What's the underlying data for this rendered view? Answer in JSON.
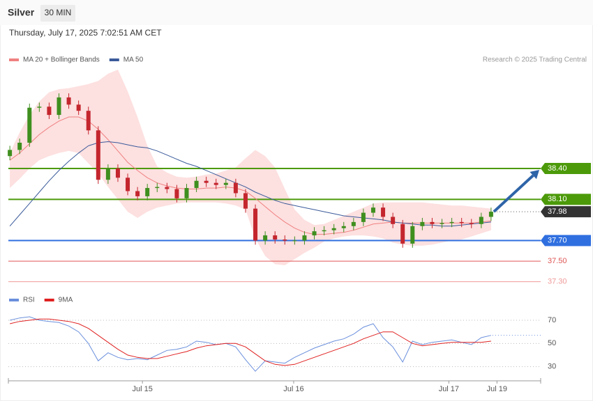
{
  "header": {
    "title": "Silver",
    "timeframe": "30 MIN",
    "timestamp": "Thursday, July 17, 2025 7:02:51 AM CET"
  },
  "chart_data": [
    {
      "type": "candlestick",
      "copyright": "Research © 2025 Trading Central",
      "up_color": "#3f8f1f",
      "down_color": "#c4262e",
      "xlim": [
        -0.15,
        54.05
      ],
      "ylim": [
        37.23,
        39.36
      ],
      "open": [
        38.52,
        38.58,
        38.65,
        38.99,
        39.0,
        38.92,
        39.09,
        39.02,
        38.96,
        38.77,
        38.29,
        38.4,
        38.31,
        38.18,
        38.13,
        38.21,
        38.22,
        38.2,
        38.11,
        38.21,
        38.28,
        38.26,
        38.24,
        38.26,
        38.16,
        38.01,
        37.7,
        37.75,
        37.71,
        37.7,
        37.7,
        37.75,
        37.79,
        37.8,
        37.82,
        37.84,
        37.88,
        37.97,
        38.02,
        37.93,
        37.86,
        37.67,
        37.84,
        37.88,
        37.86,
        37.87,
        37.88,
        37.87,
        37.86,
        37.93
      ],
      "high": [
        38.62,
        38.69,
        39.03,
        39.04,
        39.04,
        39.13,
        39.13,
        39.06,
        39.0,
        38.81,
        38.44,
        38.44,
        38.35,
        38.22,
        38.25,
        38.26,
        38.26,
        38.24,
        38.25,
        38.32,
        38.32,
        38.3,
        38.3,
        38.3,
        38.2,
        38.05,
        37.79,
        37.79,
        37.75,
        37.74,
        37.79,
        37.83,
        37.84,
        37.86,
        37.88,
        37.92,
        38.01,
        38.06,
        38.06,
        37.97,
        37.9,
        37.88,
        37.92,
        37.92,
        37.91,
        37.92,
        37.92,
        37.91,
        37.97,
        38.02
      ],
      "low": [
        38.48,
        38.54,
        38.61,
        38.95,
        38.88,
        38.88,
        38.98,
        38.92,
        38.73,
        38.25,
        38.25,
        38.27,
        38.14,
        38.09,
        38.09,
        38.17,
        38.16,
        38.07,
        38.07,
        38.17,
        38.22,
        38.2,
        38.2,
        38.12,
        37.97,
        37.66,
        37.66,
        37.67,
        37.66,
        37.66,
        37.66,
        37.71,
        37.75,
        37.76,
        37.78,
        37.8,
        37.84,
        37.93,
        37.89,
        37.82,
        37.63,
        37.63,
        37.8,
        37.82,
        37.82,
        37.83,
        37.83,
        37.82,
        37.82,
        37.89
      ],
      "close": [
        38.58,
        38.65,
        38.99,
        39.0,
        38.92,
        39.09,
        39.02,
        38.96,
        38.77,
        38.29,
        38.4,
        38.31,
        38.18,
        38.13,
        38.21,
        38.22,
        38.2,
        38.11,
        38.21,
        38.28,
        38.26,
        38.24,
        38.26,
        38.16,
        38.01,
        37.7,
        37.75,
        37.71,
        37.7,
        37.7,
        37.75,
        37.79,
        37.8,
        37.82,
        37.84,
        37.88,
        37.97,
        38.02,
        37.93,
        37.86,
        37.67,
        37.84,
        37.88,
        37.86,
        37.87,
        37.88,
        37.87,
        37.86,
        37.93,
        37.98
      ],
      "overlays": [
        {
          "name": "MA 20 + Bollinger Bands",
          "color": "#f08080",
          "band_color": "#fde0e0",
          "values": [
            38.48,
            38.55,
            38.64,
            38.73,
            38.8,
            38.86,
            38.9,
            38.9,
            38.86,
            38.78,
            38.68,
            38.57,
            38.46,
            38.38,
            38.31,
            38.26,
            38.23,
            38.21,
            38.2,
            38.2,
            38.21,
            38.21,
            38.22,
            38.21,
            38.18,
            38.11,
            38.03,
            37.95,
            37.88,
            37.82,
            37.78,
            37.76,
            37.76,
            37.77,
            37.78,
            37.8,
            37.83,
            37.86,
            37.87,
            37.88,
            37.87,
            37.87,
            37.87,
            37.87,
            37.87,
            37.87,
            37.87,
            37.87,
            37.88,
            37.89
          ],
          "upper": [
            38.55,
            38.75,
            38.92,
            39.05,
            39.14,
            39.17,
            39.18,
            39.2,
            39.22,
            39.25,
            39.32,
            39.36,
            39.15,
            38.9,
            38.62,
            38.42,
            38.36,
            38.32,
            38.31,
            38.32,
            38.34,
            38.35,
            38.38,
            38.41,
            38.5,
            38.58,
            38.52,
            38.41,
            38.2,
            38.0,
            37.9,
            37.85,
            37.86,
            37.9,
            37.94,
            37.98,
            38.02,
            38.06,
            38.07,
            38.07,
            38.07,
            38.07,
            38.07,
            38.06,
            38.05,
            38.04,
            38.04,
            38.03,
            38.02,
            38.01
          ],
          "lower": [
            38.21,
            38.3,
            38.4,
            38.48,
            38.52,
            38.55,
            38.57,
            38.55,
            38.45,
            38.35,
            38.22,
            38.1,
            37.98,
            37.92,
            37.98,
            38.02,
            38.04,
            38.06,
            38.07,
            38.07,
            38.07,
            38.07,
            38.06,
            38.04,
            38.0,
            37.72,
            37.55,
            37.47,
            37.46,
            37.52,
            37.58,
            37.63,
            37.69,
            37.72,
            37.74,
            37.75,
            37.75,
            37.74,
            37.72,
            37.68,
            37.66,
            37.65,
            37.65,
            37.66,
            37.68,
            37.7,
            37.71,
            37.74,
            37.77,
            37.8
          ]
        },
        {
          "name": "MA 50",
          "color": "#3a5a9a",
          "values": [
            37.84,
            37.95,
            38.06,
            38.17,
            38.28,
            38.38,
            38.47,
            38.55,
            38.62,
            38.65,
            38.66,
            38.65,
            38.63,
            38.61,
            38.6,
            38.57,
            38.53,
            38.49,
            38.45,
            38.42,
            38.38,
            38.34,
            38.3,
            38.26,
            38.22,
            38.17,
            38.13,
            38.09,
            38.06,
            38.04,
            38.02,
            38.0,
            37.98,
            37.96,
            37.94,
            37.93,
            37.92,
            37.91,
            37.9,
            37.88,
            37.87,
            37.86,
            37.85,
            37.85,
            37.84,
            37.84,
            37.85,
            37.86,
            37.87,
            37.88
          ]
        }
      ],
      "levels": [
        {
          "value": 38.4,
          "label": "38.40",
          "color": "#4c9a0a",
          "style": "tag"
        },
        {
          "value": 38.1,
          "label": "38.10",
          "color": "#4c9a0a",
          "style": "tag"
        },
        {
          "value": 37.98,
          "label": "37.98",
          "color": "#333333",
          "style": "current"
        },
        {
          "value": 37.7,
          "label": "37.70",
          "color": "#2f6fe0",
          "style": "tag"
        },
        {
          "value": 37.5,
          "label": "37.50",
          "color": "#e05555",
          "style": "text"
        },
        {
          "value": 37.3,
          "label": "37.30",
          "color": "#f09a9a",
          "style": "text"
        }
      ]
    },
    {
      "type": "line",
      "xlim": [
        -0.15,
        54.05
      ],
      "ylim": [
        19,
        91
      ],
      "yticks": [
        70,
        50,
        30
      ],
      "xticks": [
        {
          "value": 13.5,
          "label": "Jul 15"
        },
        {
          "value": 28.9,
          "label": "Jul 16"
        },
        {
          "value": 44.7,
          "label": "Jul 17"
        },
        {
          "value": 49.6,
          "label": "Jul 19"
        }
      ],
      "series": [
        {
          "name": "RSI",
          "color": "#6a8fdc",
          "values": [
            70,
            72,
            73,
            70,
            69,
            68,
            65,
            60,
            50,
            35,
            42,
            38,
            36,
            37,
            36,
            40,
            44,
            45,
            47,
            52,
            51,
            49,
            50,
            47,
            36,
            26,
            35,
            34,
            33,
            38,
            42,
            46,
            49,
            52,
            54,
            58,
            64,
            67,
            55,
            47,
            34,
            52,
            49,
            51,
            52,
            53,
            51,
            49,
            55,
            57
          ]
        },
        {
          "name": "9MA",
          "color": "#e02020",
          "values": [
            67,
            69,
            70,
            71,
            71,
            70,
            69,
            67,
            63,
            57,
            51,
            45,
            40,
            38,
            37,
            37,
            39,
            41,
            43,
            46,
            48,
            49,
            50,
            50,
            47,
            41,
            35,
            32,
            31,
            32,
            35,
            38,
            41,
            44,
            47,
            50,
            54,
            57,
            60,
            60,
            55,
            50,
            48,
            49,
            50,
            51,
            51,
            51,
            51,
            52
          ]
        }
      ]
    }
  ]
}
